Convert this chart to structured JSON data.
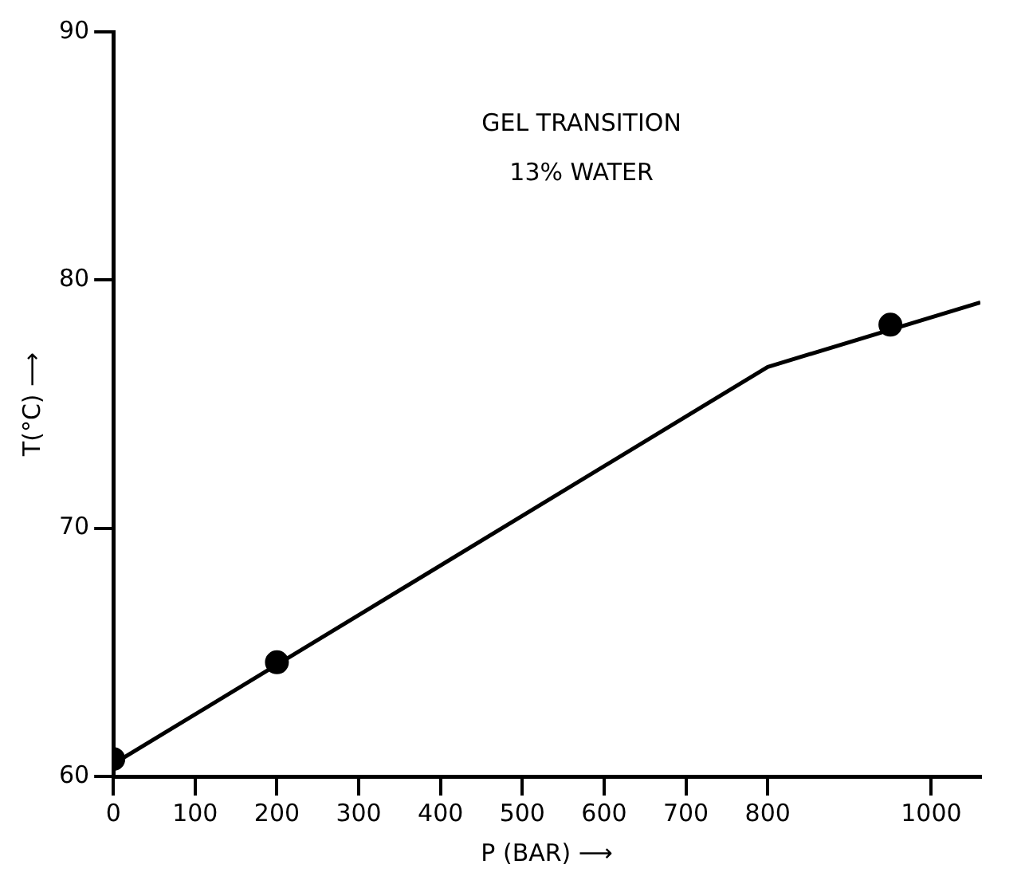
{
  "chart_data": {
    "type": "scatter",
    "xlabel": "P (BAR) ⟶",
    "ylabel": "T(°C) ⟶",
    "annotations": [
      "GEL TRANSITION",
      "13% WATER"
    ],
    "xlim": [
      0,
      1060
    ],
    "ylim": [
      60,
      90
    ],
    "xticks": [
      0,
      100,
      200,
      300,
      400,
      500,
      600,
      700,
      800,
      1000
    ],
    "yticks": [
      60,
      70,
      80,
      90
    ],
    "grid": false,
    "legend": false,
    "series": [
      {
        "color": "#000000",
        "marker": "circle",
        "x": [
          0,
          200,
          950
        ],
        "values": [
          60.7,
          64.6,
          78.2
        ]
      },
      {
        "type": "line",
        "color": "#000000",
        "marker": "none",
        "line_style": "solid",
        "x": [
          0,
          200,
          800,
          1060
        ],
        "values": [
          60.5,
          64.5,
          76.5,
          79.1
        ]
      }
    ]
  }
}
